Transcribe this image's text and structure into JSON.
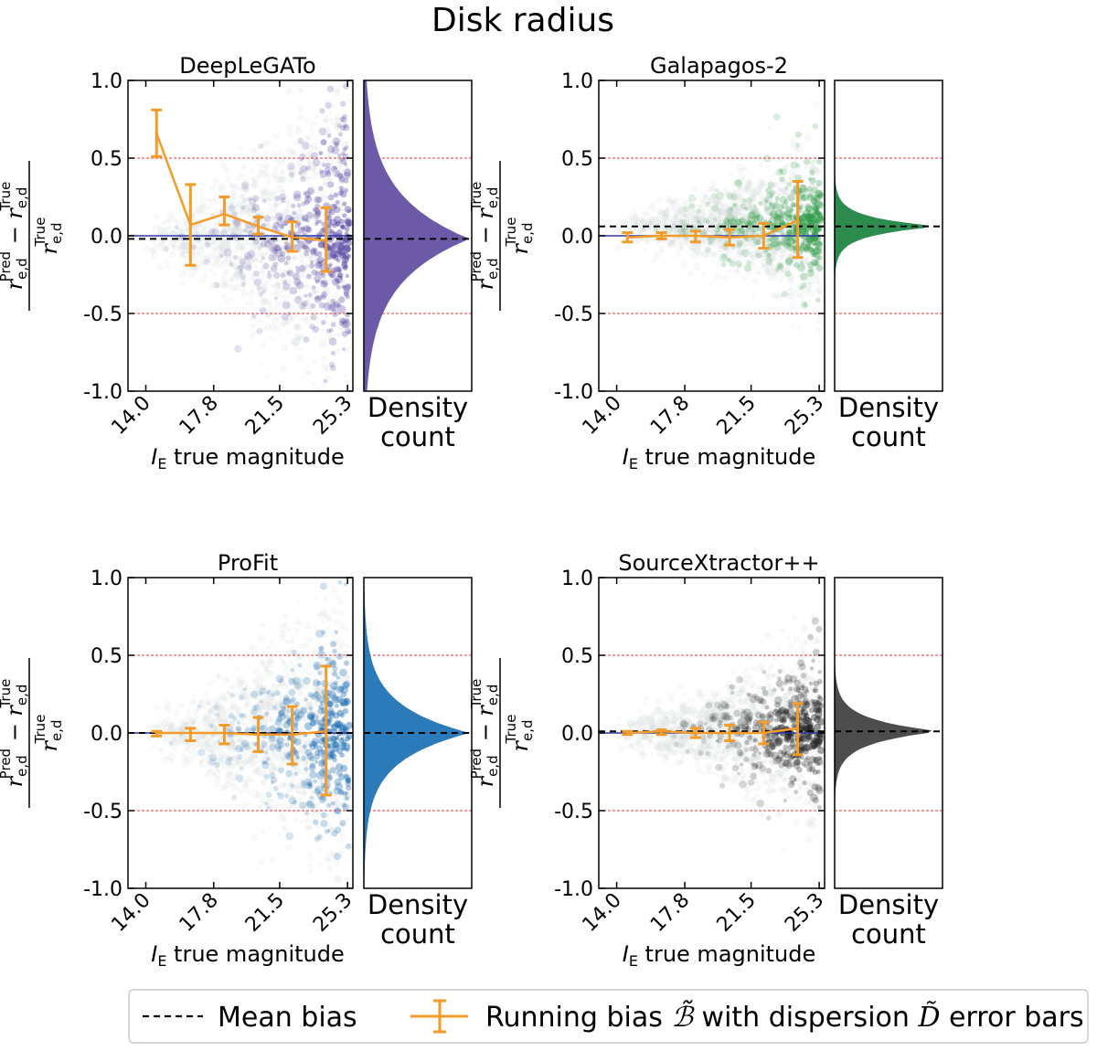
{
  "figure": {
    "title": "Disk radius",
    "legend": {
      "placement": "bottom",
      "mean_bias_label": "Mean bias",
      "running_bias_label": "Running bias ℬ̃ with dispersion Ḍ̃ error bars",
      "running_bias_text": "Running bias ",
      "with_dispersion_text": " with dispersion ",
      "error_bars_text": " error bars",
      "b_symbol": "ℬ̃",
      "d_symbol": "D̃"
    },
    "shared": {
      "xlabel_prefix": "I",
      "xlabel_sub": "E",
      "xlabel_rest": " true magnitude",
      "density_line1": "Density",
      "density_line2": "count",
      "ylabel": "(r_e,d^Pred − r_e,d^True) / r_e,d^True",
      "ylabel_r": "r",
      "ylabel_sub": "e,d",
      "ylabel_pred": "Pred",
      "ylabel_true": "True",
      "ylabel_minus": "−"
    },
    "colors": {
      "running_bias": "#f39c2b",
      "mean_bias": "#000000",
      "zero_line": "#2b3aa8",
      "threshold": "#e8393b"
    }
  },
  "chart_data": [
    {
      "type": "scatter",
      "title": "DeepLeGATo",
      "cmap": "#5b4aa5",
      "hist_color": "#6c5aa8",
      "x_ticks": [
        "14.0",
        "17.8",
        "21.5",
        "25.3"
      ],
      "x_tick_values": [
        14.0,
        17.8,
        21.5,
        25.3
      ],
      "y_ticks": [
        "1.0",
        "0.5",
        "0.0",
        "-0.5",
        "-1.0"
      ],
      "y_tick_values": [
        1.0,
        0.5,
        0.0,
        -0.5,
        -1.0
      ],
      "xlim": [
        13.0,
        25.6
      ],
      "ylim": [
        -1.0,
        1.0
      ],
      "thresholds": [
        0.5,
        -0.5
      ],
      "mean_bias": -0.02,
      "running_bias": {
        "x": [
          14.6,
          16.5,
          18.4,
          20.3,
          22.2,
          24.1
        ],
        "y": [
          0.66,
          0.07,
          0.14,
          0.06,
          -0.01,
          -0.03
        ],
        "lo": [
          0.51,
          -0.19,
          0.07,
          0.01,
          -0.1,
          -0.23
        ],
        "hi": [
          0.81,
          0.33,
          0.25,
          0.12,
          0.09,
          0.18
        ]
      },
      "spread": 0.5,
      "hist_width": 0.28
    },
    {
      "type": "scatter",
      "title": "Galapagos-2",
      "cmap": "#2e9a46",
      "hist_color": "#2c8c4d",
      "x_ticks": [
        "14.0",
        "17.8",
        "21.5",
        "25.3"
      ],
      "x_tick_values": [
        14.0,
        17.8,
        21.5,
        25.3
      ],
      "y_ticks": [
        "1.0",
        "0.5",
        "0.0",
        "-0.5",
        "-1.0"
      ],
      "y_tick_values": [
        1.0,
        0.5,
        0.0,
        -0.5,
        -1.0
      ],
      "xlim": [
        13.0,
        25.6
      ],
      "ylim": [
        -1.0,
        1.0
      ],
      "thresholds": [
        0.5,
        -0.5
      ],
      "mean_bias": 0.06,
      "running_bias": {
        "x": [
          14.6,
          16.5,
          18.4,
          20.3,
          22.2,
          24.1
        ],
        "y": [
          -0.01,
          0.0,
          0.0,
          -0.01,
          0.0,
          0.1
        ],
        "lo": [
          -0.04,
          -0.02,
          -0.04,
          -0.06,
          -0.08,
          -0.14
        ],
        "hi": [
          0.02,
          0.02,
          0.03,
          0.04,
          0.08,
          0.35
        ]
      },
      "spread": 0.2,
      "hist_width": 0.06
    },
    {
      "type": "scatter",
      "title": "ProFit",
      "cmap": "#1f6fb3",
      "hist_color": "#2b7bbb",
      "x_ticks": [
        "14.0",
        "17.8",
        "21.5",
        "25.3"
      ],
      "x_tick_values": [
        14.0,
        17.8,
        21.5,
        25.3
      ],
      "y_ticks": [
        "1.0",
        "0.5",
        "0.0",
        "-0.5",
        "-1.0"
      ],
      "y_tick_values": [
        1.0,
        0.5,
        0.0,
        -0.5,
        -1.0
      ],
      "xlim": [
        13.0,
        25.6
      ],
      "ylim": [
        -1.0,
        1.0
      ],
      "thresholds": [
        0.5,
        -0.5
      ],
      "mean_bias": 0.0,
      "running_bias": {
        "x": [
          14.6,
          16.5,
          18.4,
          20.3,
          22.2,
          24.1
        ],
        "y": [
          0.0,
          0.0,
          0.0,
          -0.01,
          -0.01,
          0.01
        ],
        "lo": [
          -0.02,
          -0.05,
          -0.07,
          -0.12,
          -0.2,
          -0.4
        ],
        "hi": [
          0.01,
          0.03,
          0.05,
          0.1,
          0.17,
          0.43
        ]
      },
      "spread": 0.45,
      "hist_width": 0.18
    },
    {
      "type": "scatter",
      "title": "SourceXtractor++",
      "cmap": "#222222",
      "hist_color": "#4d4d4d",
      "x_ticks": [
        "14.0",
        "17.8",
        "21.5",
        "25.3"
      ],
      "x_tick_values": [
        14.0,
        17.8,
        21.5,
        25.3
      ],
      "y_ticks": [
        "1.0",
        "0.5",
        "0.0",
        "-0.5",
        "-1.0"
      ],
      "y_tick_values": [
        1.0,
        0.5,
        0.0,
        -0.5,
        -1.0
      ],
      "xlim": [
        13.0,
        25.6
      ],
      "ylim": [
        -1.0,
        1.0
      ],
      "thresholds": [
        0.5,
        -0.5
      ],
      "mean_bias": 0.01,
      "running_bias": {
        "x": [
          14.6,
          16.5,
          18.4,
          20.3,
          22.2,
          24.1
        ],
        "y": [
          0.0,
          0.01,
          0.0,
          0.0,
          0.0,
          0.03
        ],
        "lo": [
          -0.01,
          -0.01,
          -0.03,
          -0.05,
          -0.07,
          -0.14
        ],
        "hi": [
          0.01,
          0.02,
          0.03,
          0.05,
          0.07,
          0.19
        ]
      },
      "spread": 0.25,
      "hist_width": 0.08
    }
  ]
}
